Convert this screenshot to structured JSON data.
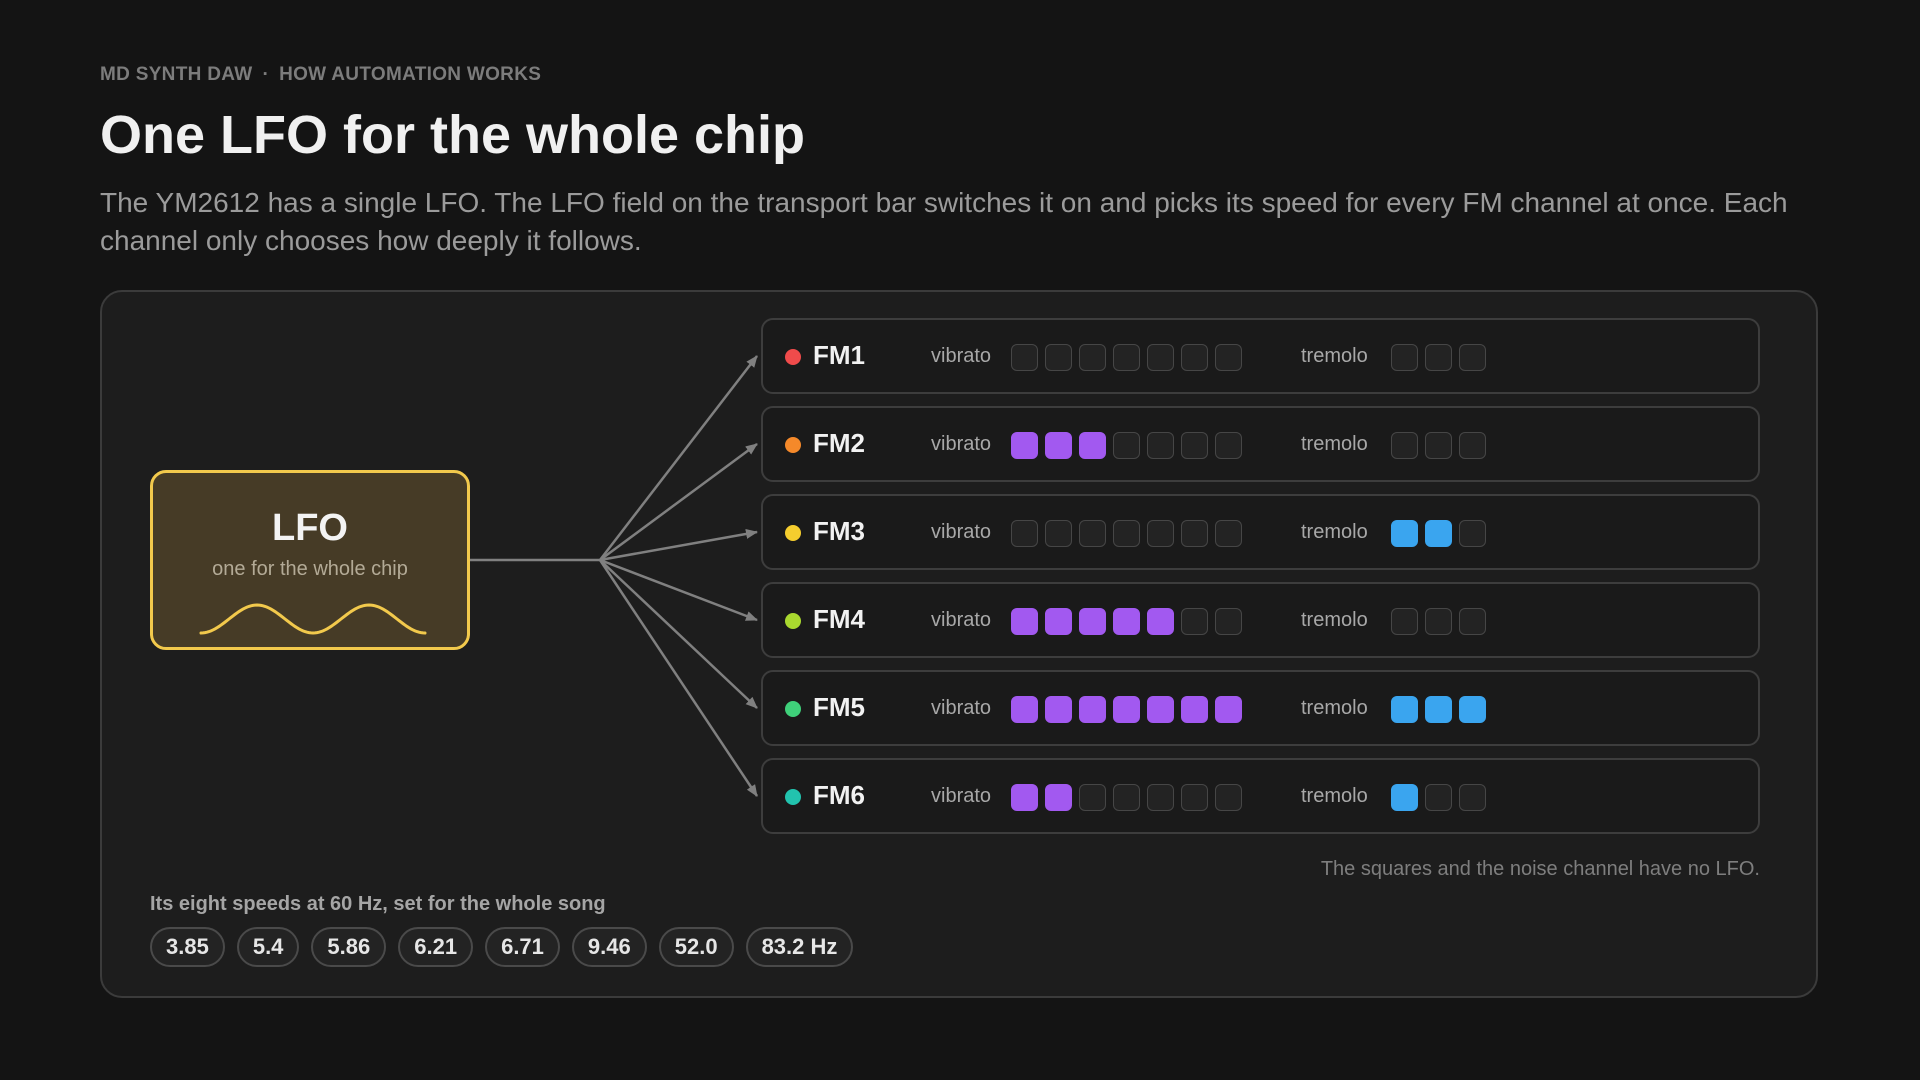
{
  "header": {
    "eyebrow_app": "MD SYNTH DAW",
    "eyebrow_sep": "·",
    "eyebrow_section": "HOW AUTOMATION WORKS",
    "title": "One LFO for the whole chip",
    "subtitle": "The YM2612 has a single LFO. The LFO field on the transport bar switches it on and picks its speed for every FM channel at once. Each channel only chooses how deeply it follows."
  },
  "lfo": {
    "title": "LFO",
    "subtitle": "one for the whole chip",
    "color": "#f2c94c",
    "icon": "sine-wave-icon"
  },
  "labels": {
    "vibrato": "vibrato",
    "tremolo": "tremolo"
  },
  "scale": {
    "vibrato_max": 7,
    "tremolo_max": 3
  },
  "colors": {
    "vibrato_on": "#a259f0",
    "tremolo_on": "#3aa5ef"
  },
  "channels": [
    {
      "name": "FM1",
      "color": "#f04b4b",
      "vibrato": 0,
      "tremolo": 0
    },
    {
      "name": "FM2",
      "color": "#f5892a",
      "vibrato": 3,
      "tremolo": 0
    },
    {
      "name": "FM3",
      "color": "#f5cd2e",
      "vibrato": 0,
      "tremolo": 2
    },
    {
      "name": "FM4",
      "color": "#a9d82f",
      "vibrato": 5,
      "tremolo": 0
    },
    {
      "name": "FM5",
      "color": "#3fd07a",
      "vibrato": 7,
      "tremolo": 3
    },
    {
      "name": "FM6",
      "color": "#22c3ae",
      "vibrato": 2,
      "tremolo": 1
    }
  ],
  "note": "The squares and the noise channel have no LFO.",
  "speeds": {
    "label": "Its eight speeds at 60 Hz, set for the whole song",
    "values": [
      "3.85",
      "5.4",
      "5.86",
      "6.21",
      "6.71",
      "9.46",
      "52.0",
      "83.2 Hz"
    ]
  }
}
